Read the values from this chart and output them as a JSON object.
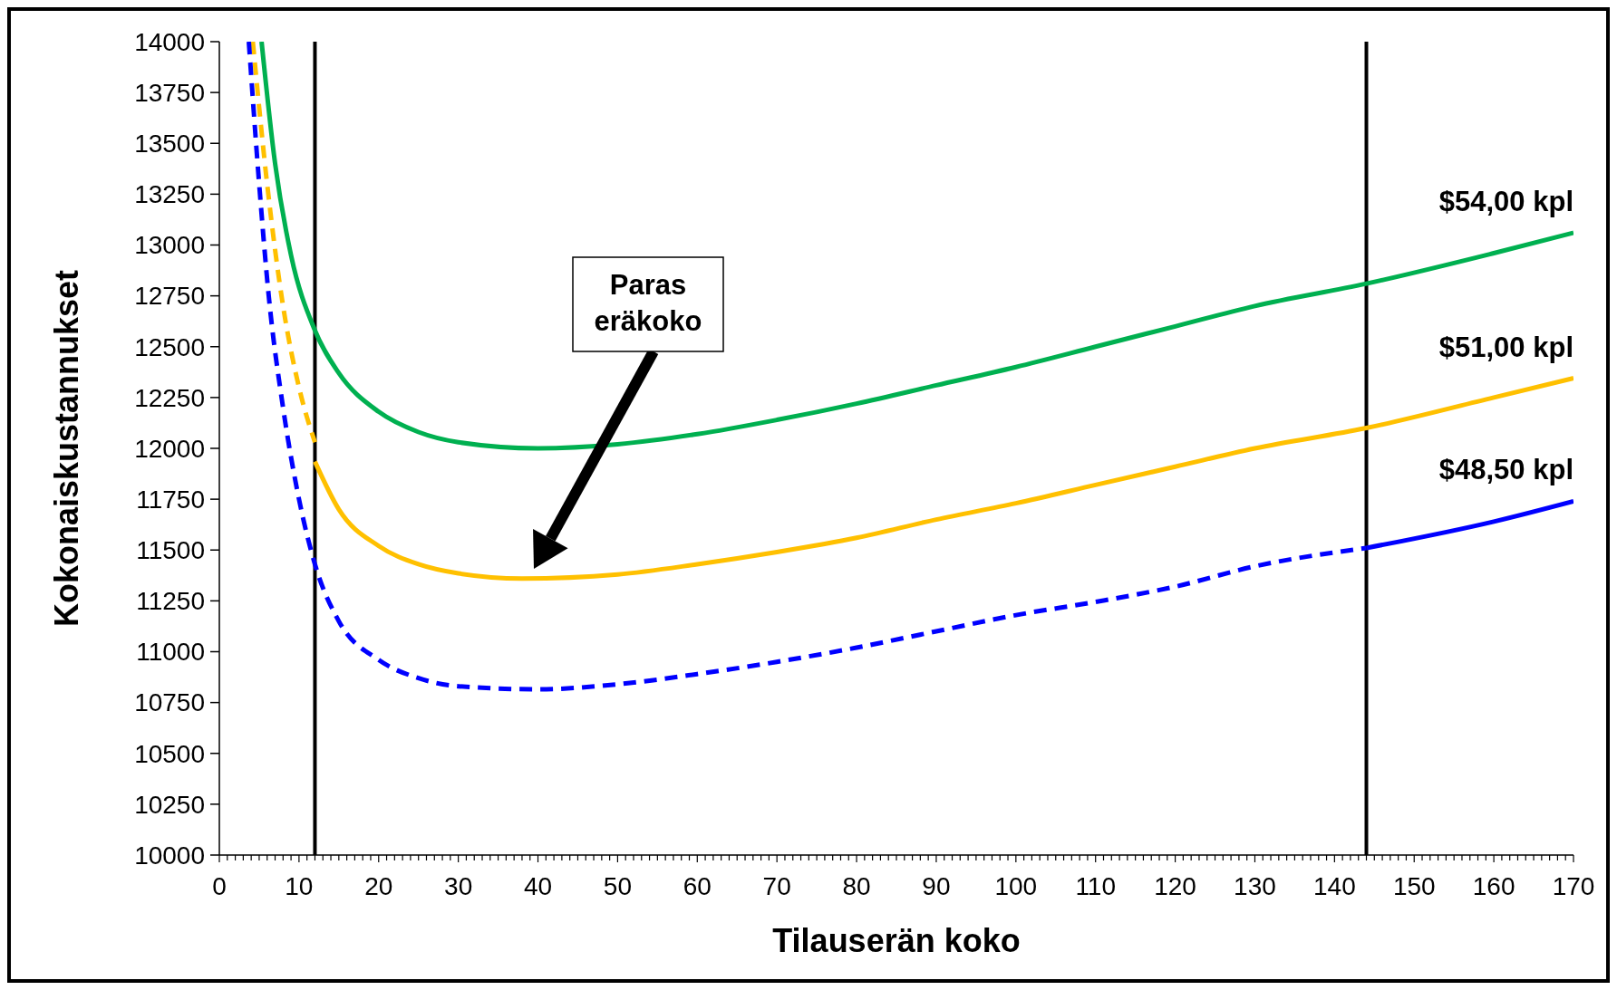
{
  "chart_data": {
    "type": "line",
    "xlabel": "Tilauserän koko",
    "ylabel": "Kokonaiskustannukset",
    "xlim": [
      0,
      170
    ],
    "ylim": [
      10000,
      14000
    ],
    "xticks": [
      0,
      {
        "value": 1,
        "label": null
      },
      {
        "value": 2,
        "label": null
      },
      {
        "value": 3,
        "label": null
      },
      {
        "value": 4,
        "label": null
      },
      {
        "value": 5,
        "label": null
      },
      {
        "value": 6,
        "label": null
      },
      {
        "value": 7,
        "label": null
      },
      {
        "value": 8,
        "label": null
      },
      {
        "value": 9,
        "label": null
      },
      10,
      {
        "value": 11,
        "label": null
      },
      {
        "value": 12,
        "label": null
      },
      {
        "value": 13,
        "label": null
      },
      {
        "value": 14,
        "label": null
      },
      {
        "value": 15,
        "label": null
      },
      {
        "value": 16,
        "label": null
      },
      {
        "value": 17,
        "label": null
      },
      {
        "value": 18,
        "label": null
      },
      {
        "value": 19,
        "label": null
      },
      20,
      {
        "value": 21,
        "label": null
      },
      {
        "value": 22,
        "label": null
      },
      {
        "value": 23,
        "label": null
      },
      {
        "value": 24,
        "label": null
      },
      {
        "value": 25,
        "label": null
      },
      {
        "value": 26,
        "label": null
      },
      {
        "value": 27,
        "label": null
      },
      {
        "value": 28,
        "label": null
      },
      {
        "value": 29,
        "label": null
      },
      30,
      {
        "value": 31,
        "label": null
      },
      {
        "value": 32,
        "label": null
      },
      {
        "value": 33,
        "label": null
      },
      {
        "value": 34,
        "label": null
      },
      {
        "value": 35,
        "label": null
      },
      {
        "value": 36,
        "label": null
      },
      {
        "value": 37,
        "label": null
      },
      {
        "value": 38,
        "label": null
      },
      {
        "value": 39,
        "label": null
      },
      40,
      {
        "value": 41,
        "label": null
      },
      {
        "value": 42,
        "label": null
      },
      {
        "value": 43,
        "label": null
      },
      {
        "value": 44,
        "label": null
      },
      {
        "value": 45,
        "label": null
      },
      {
        "value": 46,
        "label": null
      },
      {
        "value": 47,
        "label": null
      },
      {
        "value": 48,
        "label": null
      },
      {
        "value": 49,
        "label": null
      },
      50,
      {
        "value": 51,
        "label": null
      },
      {
        "value": 52,
        "label": null
      },
      {
        "value": 53,
        "label": null
      },
      {
        "value": 54,
        "label": null
      },
      {
        "value": 55,
        "label": null
      },
      {
        "value": 56,
        "label": null
      },
      {
        "value": 57,
        "label": null
      },
      {
        "value": 58,
        "label": null
      },
      {
        "value": 59,
        "label": null
      },
      60,
      {
        "value": 61,
        "label": null
      },
      {
        "value": 62,
        "label": null
      },
      {
        "value": 63,
        "label": null
      },
      {
        "value": 64,
        "label": null
      },
      {
        "value": 65,
        "label": null
      },
      {
        "value": 66,
        "label": null
      },
      {
        "value": 67,
        "label": null
      },
      {
        "value": 68,
        "label": null
      },
      {
        "value": 69,
        "label": null
      },
      70,
      {
        "value": 71,
        "label": null
      },
      {
        "value": 72,
        "label": null
      },
      {
        "value": 73,
        "label": null
      },
      {
        "value": 74,
        "label": null
      },
      {
        "value": 75,
        "label": null
      },
      {
        "value": 76,
        "label": null
      },
      {
        "value": 77,
        "label": null
      },
      {
        "value": 78,
        "label": null
      },
      {
        "value": 79,
        "label": null
      },
      80,
      {
        "value": 81,
        "label": null
      },
      {
        "value": 82,
        "label": null
      },
      {
        "value": 83,
        "label": null
      },
      {
        "value": 84,
        "label": null
      },
      {
        "value": 85,
        "label": null
      },
      {
        "value": 86,
        "label": null
      },
      {
        "value": 87,
        "label": null
      },
      {
        "value": 88,
        "label": null
      },
      {
        "value": 89,
        "label": null
      },
      90,
      {
        "value": 91,
        "label": null
      },
      {
        "value": 92,
        "label": null
      },
      {
        "value": 93,
        "label": null
      },
      {
        "value": 94,
        "label": null
      },
      {
        "value": 95,
        "label": null
      },
      {
        "value": 96,
        "label": null
      },
      {
        "value": 97,
        "label": null
      },
      {
        "value": 98,
        "label": null
      },
      {
        "value": 99,
        "label": null
      },
      100,
      {
        "value": 101,
        "label": null
      },
      {
        "value": 102,
        "label": null
      },
      {
        "value": 103,
        "label": null
      },
      {
        "value": 104,
        "label": null
      },
      {
        "value": 105,
        "label": null
      },
      {
        "value": 106,
        "label": null
      },
      {
        "value": 107,
        "label": null
      },
      {
        "value": 108,
        "label": null
      },
      {
        "value": 109,
        "label": null
      },
      110,
      {
        "value": 111,
        "label": null
      },
      {
        "value": 112,
        "label": null
      },
      {
        "value": 113,
        "label": null
      },
      {
        "value": 114,
        "label": null
      },
      {
        "value": 115,
        "label": null
      },
      {
        "value": 116,
        "label": null
      },
      {
        "value": 117,
        "label": null
      },
      {
        "value": 118,
        "label": null
      },
      {
        "value": 119,
        "label": null
      },
      120,
      {
        "value": 121,
        "label": null
      },
      {
        "value": 122,
        "label": null
      },
      {
        "value": 123,
        "label": null
      },
      {
        "value": 124,
        "label": null
      },
      {
        "value": 125,
        "label": null
      },
      {
        "value": 126,
        "label": null
      },
      {
        "value": 127,
        "label": null
      },
      {
        "value": 128,
        "label": null
      },
      {
        "value": 129,
        "label": null
      },
      130,
      {
        "value": 131,
        "label": null
      },
      {
        "value": 132,
        "label": null
      },
      {
        "value": 133,
        "label": null
      },
      {
        "value": 134,
        "label": null
      },
      {
        "value": 135,
        "label": null
      },
      {
        "value": 136,
        "label": null
      },
      {
        "value": 137,
        "label": null
      },
      {
        "value": 138,
        "label": null
      },
      {
        "value": 139,
        "label": null
      },
      140,
      {
        "value": 141,
        "label": null
      },
      {
        "value": 142,
        "label": null
      },
      {
        "value": 143,
        "label": null
      },
      {
        "value": 144,
        "label": null
      },
      {
        "value": 145,
        "label": null
      },
      {
        "value": 146,
        "label": null
      },
      {
        "value": 147,
        "label": null
      },
      {
        "value": 148,
        "label": null
      },
      {
        "value": 149,
        "label": null
      },
      150,
      {
        "value": 151,
        "label": null
      },
      {
        "value": 152,
        "label": null
      },
      {
        "value": 153,
        "label": null
      },
      {
        "value": 154,
        "label": null
      },
      {
        "value": 155,
        "label": null
      },
      {
        "value": 156,
        "label": null
      },
      {
        "value": 157,
        "label": null
      },
      {
        "value": 158,
        "label": null
      },
      {
        "value": 159,
        "label": null
      },
      160,
      {
        "value": 161,
        "label": null
      },
      {
        "value": 162,
        "label": null
      },
      {
        "value": 163,
        "label": null
      },
      {
        "value": 164,
        "label": null
      },
      {
        "value": 165,
        "label": null
      },
      {
        "value": 166,
        "label": null
      },
      {
        "value": 167,
        "label": null
      },
      {
        "value": 168,
        "label": null
      },
      {
        "value": 169,
        "label": null
      },
      170
    ],
    "yticks": [
      10000,
      10250,
      10500,
      10750,
      11000,
      11250,
      11500,
      11750,
      12000,
      12250,
      12500,
      12750,
      13000,
      13250,
      13500,
      13750,
      14000
    ],
    "grid": false,
    "marker": "none",
    "series": [
      {
        "name": "$54,00 kpl",
        "color": "#00b050",
        "line_style": "solid",
        "x": [
          5.3,
          7,
          9,
          12,
          15,
          20,
          25,
          30,
          40,
          50,
          60,
          70,
          80,
          90,
          100,
          110,
          120,
          130,
          144,
          160,
          170
        ],
        "values": [
          14000,
          13400,
          12950,
          12580,
          12370,
          12180,
          12080,
          12030,
          12000,
          12020,
          12070,
          12140,
          12220,
          12310,
          12400,
          12500,
          12600,
          12700,
          12810,
          12960,
          13060
        ]
      },
      {
        "color": "#ffc000",
        "line_style": "dashed",
        "x": [
          4.2,
          6,
          8,
          10,
          12
        ],
        "values": [
          14000,
          13300,
          12700,
          12300,
          12030
        ]
      },
      {
        "name": "$51,00 kpl",
        "color": "#ffc000",
        "line_style": "solid",
        "x": [
          12,
          15,
          20,
          25,
          30,
          38,
          50,
          60,
          70,
          80,
          90,
          100,
          110,
          120,
          130,
          144,
          160,
          170
        ],
        "values": [
          11935,
          11700,
          11520,
          11430,
          11385,
          11360,
          11380,
          11430,
          11490,
          11560,
          11650,
          11730,
          11820,
          11910,
          12000,
          12100,
          12250,
          12345
        ]
      },
      {
        "color": "#0000ff",
        "line_style": "dashed",
        "x": [
          3.7,
          5,
          6.2,
          8,
          10,
          12,
          15,
          20,
          25,
          30,
          40,
          50,
          60,
          70,
          80,
          90,
          100,
          110,
          120,
          130,
          144
        ],
        "values": [
          14000,
          13300,
          12750,
          12200,
          11750,
          11430,
          11150,
          10960,
          10870,
          10830,
          10815,
          10840,
          10890,
          10950,
          11020,
          11100,
          11180,
          11245,
          11320,
          11420,
          11510
        ]
      },
      {
        "name": "$48,50 kpl",
        "color": "#0000ff",
        "line_style": "solid",
        "x": [
          144,
          160,
          170
        ],
        "values": [
          11510,
          11640,
          11740
        ]
      }
    ],
    "ref_lines": [
      {
        "axis": "x",
        "value": 12,
        "color": "#000000"
      },
      {
        "axis": "x",
        "value": 144,
        "color": "#000000"
      }
    ],
    "annotations": [
      "Paras\neräkoko"
    ]
  }
}
